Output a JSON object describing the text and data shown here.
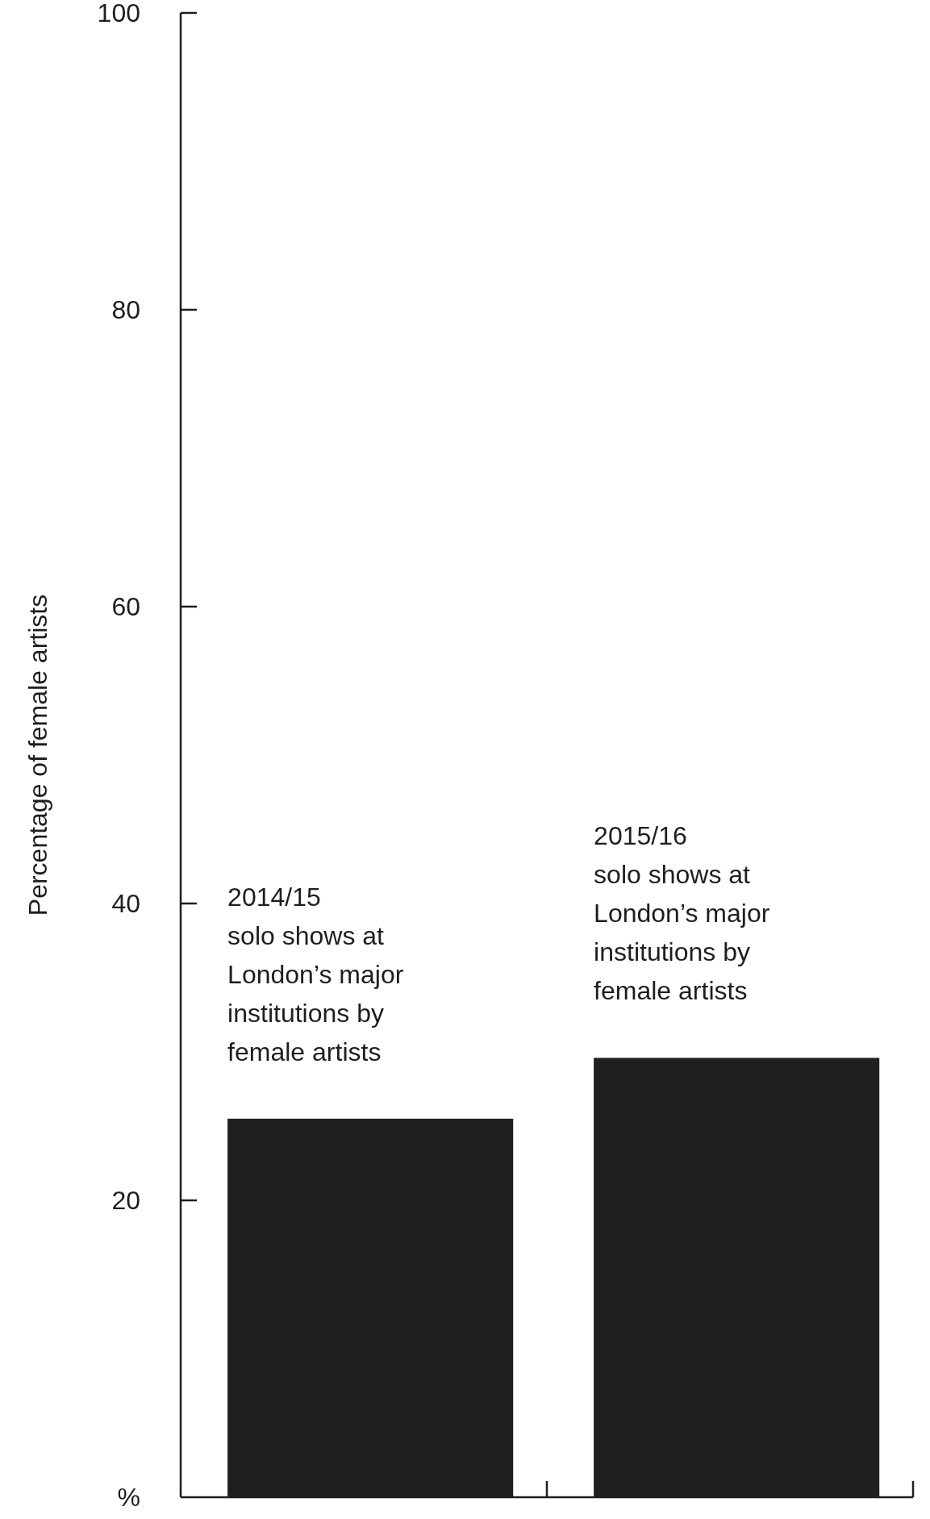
{
  "chart_data": {
    "type": "bar",
    "ylabel": "Percentage of female artists",
    "categories": [
      "2014/15\nsolo shows at\nLondon’s major\ninstitutions by\nfemale artists",
      "2015/16\nsolo shows at\nLondon’s major\ninstitutions by\nfemale artists"
    ],
    "values": [
      25.5,
      29.6
    ],
    "color": "#1f1f1d",
    "ylim": [
      0,
      100
    ],
    "yticks": [
      {
        "value": 0,
        "label": "%"
      },
      20,
      40,
      60,
      80,
      100
    ],
    "grid": false
  }
}
